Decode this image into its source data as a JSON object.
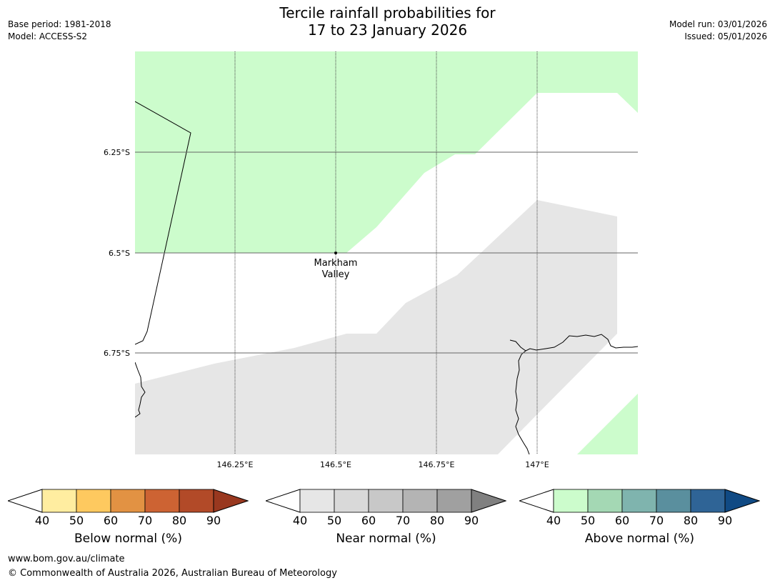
{
  "title": {
    "line1": "Tercile rainfall probabilities for",
    "line2": "17 to 23 January 2026"
  },
  "meta_left": {
    "base_period": "Base period: 1981-2018",
    "model": "Model: ACCESS-S2"
  },
  "meta_right": {
    "model_run": "Model run: 03/01/2026",
    "issued": "Issued: 05/01/2026"
  },
  "map": {
    "lat_labels": [
      "6.25°S",
      "6.5°S",
      "6.75°S"
    ],
    "lon_labels": [
      "146.25°E",
      "146.5°E",
      "146.75°E",
      "147°E"
    ],
    "place": {
      "name_line1": "Markham",
      "name_line2": "Valley"
    },
    "colors": {
      "above_50": "#ccfccc",
      "near_40": "#e6e6e6"
    }
  },
  "legends": [
    {
      "label": "Below normal (%)",
      "ticks": [
        "40",
        "50",
        "60",
        "70",
        "80",
        "90"
      ],
      "colors": [
        "#ffeda0",
        "#fec95f",
        "#e29243",
        "#cd6333",
        "#b24a28",
        "#99381f"
      ]
    },
    {
      "label": "Near normal (%)",
      "ticks": [
        "40",
        "50",
        "60",
        "70",
        "80",
        "90"
      ],
      "colors": [
        "#e6e6e6",
        "#d9d9d9",
        "#c8c8c8",
        "#b4b4b4",
        "#a0a0a0",
        "#808080"
      ]
    },
    {
      "label": "Above normal (%)",
      "ticks": [
        "40",
        "50",
        "60",
        "70",
        "80",
        "90"
      ],
      "colors": [
        "#ccfccc",
        "#a4d8b4",
        "#7fb4ae",
        "#5a8f9e",
        "#2f6496",
        "#104a84"
      ]
    }
  ],
  "footer": {
    "url": "www.bom.gov.au/climate",
    "copyright": "© Commonwealth of Australia 2026, Australian Bureau of Meteorology"
  }
}
